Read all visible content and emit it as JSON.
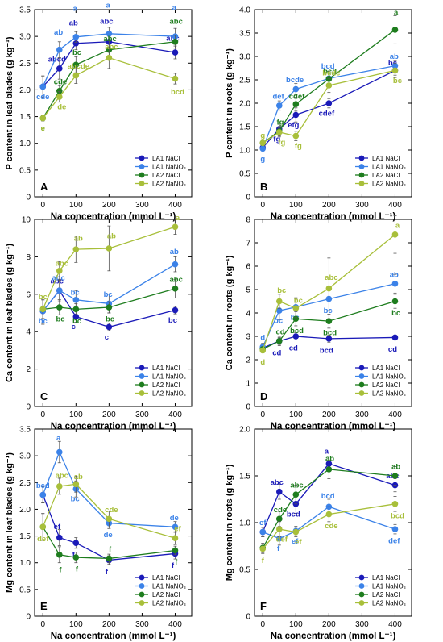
{
  "series_colors": [
    "#1a1ab8",
    "#3b82e8",
    "#1e7d1e",
    "#a8bf3a"
  ],
  "chart_data": [
    {
      "type": "scatter",
      "panel_label": "A",
      "xlabel": "Na concentration (mmol L⁻¹)",
      "ylabel": "P content in leaf blades (g kg⁻¹)",
      "xlim": [
        -25,
        450
      ],
      "ylim": [
        0,
        3.5
      ],
      "xticks": [
        0,
        100,
        200,
        300,
        400
      ],
      "xticklabels": [
        "0",
        "100",
        "200",
        "300",
        "400"
      ],
      "yticks": [
        0,
        0.5,
        1,
        1.5,
        2,
        2.5,
        3,
        3.5
      ],
      "yticklabels": [
        "0",
        "0.5",
        "1.0",
        "1.5",
        "2.0",
        "2.5",
        "3.0",
        "3.5"
      ],
      "legend_position": "bottom-right",
      "x": [
        0,
        50,
        100,
        200,
        400
      ],
      "series": [
        {
          "name": "LA1 NaCl",
          "values": [
            2.06,
            2.4,
            2.87,
            2.9,
            2.7
          ],
          "errors": [
            0.2,
            0.2,
            0.12,
            0.1,
            0.12
          ],
          "letters": [
            "",
            "abcd",
            "ab",
            "abc",
            "abc"
          ]
        },
        {
          "name": "LA1 NaNO₃",
          "values": [
            2.06,
            2.75,
            2.99,
            3.05,
            3.0
          ],
          "errors": [
            0.2,
            0.15,
            0.1,
            0.12,
            0.15
          ],
          "letters": [
            "cde",
            "ab",
            "a",
            "a",
            "a"
          ]
        },
        {
          "name": "LA2 NaCl",
          "values": [
            1.47,
            1.98,
            2.47,
            2.75,
            2.9
          ],
          "errors": [
            0.05,
            0.1,
            0.15,
            0.18,
            0.12
          ],
          "letters": [
            "e",
            "cde",
            "bc",
            "abc",
            "abc"
          ]
        },
        {
          "name": "LA2 NaNO₃",
          "values": [
            1.47,
            1.87,
            2.27,
            2.6,
            2.21
          ],
          "errors": [
            0.05,
            0.1,
            0.15,
            0.2,
            0.1
          ],
          "letters": [
            "e",
            "de",
            "abcde",
            "abc",
            "bcd"
          ]
        }
      ]
    },
    {
      "type": "scatter",
      "panel_label": "B",
      "xlabel": "Na concentration (mmol L⁻¹)",
      "ylabel": "P content in roots (g kg⁻¹)",
      "xlim": [
        -25,
        450
      ],
      "ylim": [
        0,
        4.0
      ],
      "xticks": [
        0,
        100,
        200,
        300,
        400
      ],
      "xticklabels": [
        "0",
        "100",
        "200",
        "300",
        "400"
      ],
      "yticks": [
        0,
        0.5,
        1,
        1.5,
        2,
        2.5,
        3,
        3.5,
        4
      ],
      "yticklabels": [
        "0",
        "0.5",
        "1.0",
        "1.5",
        "2.0",
        "2.5",
        "3.0",
        "3.5",
        "4.0"
      ],
      "legend_position": "bottom-right",
      "x": [
        0,
        50,
        100,
        200,
        400
      ],
      "series": [
        {
          "name": "LA1 NaCl",
          "values": [
            1.05,
            1.45,
            1.75,
            2.0,
            2.7
          ],
          "errors": [
            0.05,
            0.1,
            0.15,
            0.1,
            0.1
          ],
          "letters": [
            "",
            "fg",
            "efg",
            "cdef",
            "bc"
          ]
        },
        {
          "name": "LA1 NaNO₃",
          "values": [
            1.03,
            1.95,
            2.3,
            2.53,
            2.8
          ],
          "errors": [
            0.05,
            0.1,
            0.12,
            0.15,
            0.1
          ],
          "letters": [
            "g",
            "def",
            "bcde",
            "bcd",
            "ab"
          ]
        },
        {
          "name": "LA2 NaCl",
          "values": [
            1.15,
            1.4,
            1.98,
            2.52,
            3.57
          ],
          "errors": [
            0.05,
            0.1,
            0.15,
            0.12,
            0.3
          ],
          "letters": [
            "",
            "fg",
            "cdef",
            "bcd",
            "a"
          ]
        },
        {
          "name": "LA2 NaNO₃",
          "values": [
            1.15,
            1.38,
            1.3,
            2.38,
            2.7
          ],
          "errors": [
            0.05,
            0.1,
            0.1,
            0.15,
            0.15
          ],
          "letters": [
            "g",
            "fg",
            "fg",
            "bcde",
            "bc"
          ]
        }
      ]
    },
    {
      "type": "scatter",
      "panel_label": "C",
      "xlabel": "Na concentration (mmol L⁻¹)",
      "ylabel": "Ca content in leaf blades (g kg⁻¹)",
      "xlim": [
        -25,
        450
      ],
      "ylim": [
        0,
        10
      ],
      "xticks": [
        0,
        100,
        200,
        300,
        400
      ],
      "xticklabels": [
        "0",
        "100",
        "200",
        "300",
        "400"
      ],
      "yticks": [
        0,
        2,
        4,
        6,
        8,
        10
      ],
      "yticklabels": [
        "0",
        "2",
        "4",
        "6",
        "8",
        "10"
      ],
      "legend_position": "bottom-right",
      "x": [
        0,
        50,
        100,
        200,
        400
      ],
      "series": [
        {
          "name": "LA1 NaCl",
          "values": [
            5.1,
            6.2,
            4.8,
            4.25,
            5.15
          ],
          "errors": [
            0.7,
            0.6,
            0.3,
            0.2,
            0.2
          ],
          "letters": [
            "",
            "abc",
            "c",
            "c",
            "bc"
          ]
        },
        {
          "name": "LA1 NaNO₃",
          "values": [
            5.1,
            6.2,
            5.7,
            5.5,
            7.6
          ],
          "errors": [
            0.7,
            0.5,
            0.5,
            0.5,
            0.4
          ],
          "letters": [
            "bc",
            "abc",
            "bc",
            "bc",
            "ab"
          ]
        },
        {
          "name": "LA2 NaCl",
          "values": [
            5.2,
            5.3,
            5.2,
            5.3,
            6.3
          ],
          "errors": [
            0.5,
            0.4,
            0.3,
            0.3,
            0.5
          ],
          "letters": [
            "",
            "bc",
            "bc",
            "bc",
            "abc"
          ]
        },
        {
          "name": "LA2 NaNO₃",
          "values": [
            5.2,
            7.25,
            8.4,
            8.45,
            9.6
          ],
          "errors": [
            0.5,
            0.5,
            0.7,
            1.2,
            0.4
          ],
          "letters": [
            "bc",
            "abc",
            "ab",
            "ab",
            "a"
          ]
        }
      ]
    },
    {
      "type": "scatter",
      "panel_label": "D",
      "xlabel": "Na concentration (mmol L⁻¹)",
      "ylabel": "Ca content in roots (g kg⁻¹)",
      "xlim": [
        -25,
        450
      ],
      "ylim": [
        0,
        8
      ],
      "xticks": [
        0,
        100,
        200,
        300,
        400
      ],
      "xticklabels": [
        "0",
        "100",
        "200",
        "300",
        "400"
      ],
      "yticks": [
        0,
        1,
        2,
        3,
        4,
        5,
        6,
        7,
        8
      ],
      "yticklabels": [
        "0",
        "1",
        "2",
        "3",
        "4",
        "5",
        "6",
        "7",
        "8"
      ],
      "legend_position": "bottom-right",
      "x": [
        0,
        50,
        100,
        200,
        400
      ],
      "series": [
        {
          "name": "LA1 NaCl",
          "values": [
            2.5,
            2.8,
            3.0,
            2.9,
            2.95
          ],
          "errors": [
            0.1,
            0.15,
            0.15,
            0.15,
            0.1
          ],
          "letters": [
            "",
            "cd",
            "cd",
            "bcd",
            "cd"
          ]
        },
        {
          "name": "LA1 NaNO₃",
          "values": [
            2.55,
            4.1,
            4.25,
            4.6,
            5.25
          ],
          "errors": [
            0.15,
            0.4,
            0.4,
            0.5,
            0.4
          ],
          "letters": [
            "d",
            "bc",
            "bc",
            "bc",
            "ab"
          ]
        },
        {
          "name": "LA2 NaCl",
          "values": [
            2.45,
            2.8,
            3.75,
            3.65,
            4.5
          ],
          "errors": [
            0.1,
            0.2,
            0.3,
            0.3,
            0.3
          ],
          "letters": [
            "",
            "cd",
            "bcd",
            "bcd",
            "bc"
          ]
        },
        {
          "name": "LA2 NaNO₃",
          "values": [
            2.4,
            4.5,
            4.2,
            5.05,
            7.35
          ],
          "errors": [
            0.1,
            0.3,
            0.4,
            1.3,
            0.8
          ],
          "letters": [
            "d",
            "bc",
            "bc",
            "abc",
            "a"
          ]
        }
      ]
    },
    {
      "type": "scatter",
      "panel_label": "E",
      "xlabel": "Na concentration (mmol L⁻¹)",
      "ylabel": "Mg content in leaf blades (g kg⁻¹)",
      "xlim": [
        -25,
        450
      ],
      "ylim": [
        0,
        3.5
      ],
      "xticks": [
        0,
        100,
        200,
        300,
        400
      ],
      "xticklabels": [
        "0",
        "100",
        "200",
        "300",
        "400"
      ],
      "yticks": [
        0,
        0.5,
        1,
        1.5,
        2,
        2.5,
        3,
        3.5
      ],
      "yticklabels": [
        "0",
        "0.5",
        "1.0",
        "1.5",
        "2.0",
        "2.5",
        "3.0",
        "3.5"
      ],
      "legend_position": "bottom-right",
      "x": [
        0,
        50,
        100,
        200,
        400
      ],
      "series": [
        {
          "name": "LA1 NaCl",
          "values": [
            2.27,
            1.47,
            1.37,
            1.05,
            1.17
          ],
          "errors": [
            0.15,
            0.15,
            0.1,
            0.08,
            0.1
          ],
          "letters": [
            "",
            "ef",
            "f",
            "f",
            "f"
          ]
        },
        {
          "name": "LA1 NaNO₃",
          "values": [
            2.27,
            3.07,
            2.38,
            1.74,
            1.67
          ],
          "errors": [
            0.15,
            0.2,
            0.15,
            0.1,
            0.1
          ],
          "letters": [
            "bcd",
            "a",
            "bc",
            "de",
            "de"
          ]
        },
        {
          "name": "LA2 NaCl",
          "values": [
            1.67,
            1.15,
            1.1,
            1.08,
            1.23
          ],
          "errors": [
            0.25,
            0.15,
            0.1,
            0.08,
            0.08
          ],
          "letters": [
            "",
            "f",
            "f",
            "f",
            "f"
          ]
        },
        {
          "name": "LA2 NaNO₃",
          "values": [
            1.67,
            2.43,
            2.47,
            1.82,
            1.46
          ],
          "errors": [
            0.25,
            0.15,
            0.15,
            0.15,
            0.12
          ],
          "letters": [
            "def",
            "abc",
            "ab",
            "cde",
            "ef"
          ]
        }
      ]
    },
    {
      "type": "scatter",
      "panel_label": "F",
      "xlabel": "Na concentration (mmol L⁻¹)",
      "ylabel": "Mg content in roots (g kg⁻¹)",
      "xlim": [
        -25,
        450
      ],
      "ylim": [
        0,
        2.0
      ],
      "xticks": [
        0,
        100,
        200,
        300,
        400
      ],
      "xticklabels": [
        "0",
        "100",
        "200",
        "300",
        "400"
      ],
      "yticks": [
        0,
        0.5,
        1,
        1.5,
        2
      ],
      "yticklabels": [
        "0",
        "0.5",
        "1.0",
        "1.5",
        "2.0"
      ],
      "legend_position": "bottom-right",
      "x": [
        0,
        50,
        100,
        200,
        400
      ],
      "series": [
        {
          "name": "LA1 NaCl",
          "values": [
            0.9,
            1.33,
            1.2,
            1.63,
            1.4
          ],
          "errors": [
            0.05,
            0.08,
            0.1,
            0.08,
            0.07
          ],
          "letters": [
            "",
            "abc",
            "bcd",
            "a",
            "abc"
          ]
        },
        {
          "name": "LA1 NaNO₃",
          "values": [
            0.9,
            0.83,
            0.91,
            1.17,
            0.93
          ],
          "errors": [
            0.05,
            0.07,
            0.05,
            0.08,
            0.05
          ],
          "letters": [
            "ef",
            "f",
            "ef",
            "bcd",
            "def"
          ]
        },
        {
          "name": "LA2 NaCl",
          "values": [
            0.73,
            1.04,
            1.3,
            1.57,
            1.5
          ],
          "errors": [
            0.05,
            0.08,
            0.1,
            0.1,
            0.1
          ],
          "letters": [
            "",
            "cde",
            "abc",
            "ab",
            "ab"
          ]
        },
        {
          "name": "LA2 NaNO₃",
          "values": [
            0.72,
            0.93,
            0.9,
            1.09,
            1.2
          ],
          "errors": [
            0.05,
            0.08,
            0.05,
            0.08,
            0.08
          ],
          "letters": [
            "f",
            "def",
            "ef",
            "cde",
            "bcd"
          ]
        }
      ]
    }
  ]
}
